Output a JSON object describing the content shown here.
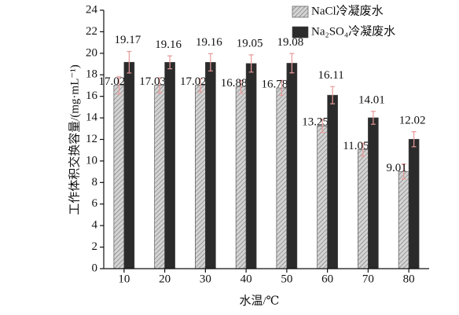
{
  "chart_data": {
    "type": "bar",
    "x_label": "水温/℃",
    "y_label": "工作体积交换容量/(mg·mL⁻¹)",
    "categories": [
      "10",
      "20",
      "30",
      "40",
      "50",
      "60",
      "70",
      "80"
    ],
    "series": [
      {
        "name": "NaCl冷凝废水",
        "color": "#d4d4d4",
        "hatch": true,
        "values": [
          17.02,
          17.03,
          17.02,
          16.88,
          16.78,
          13.25,
          11.05,
          9.01
        ],
        "errors": [
          0.8,
          0.7,
          0.6,
          0.6,
          0.7,
          0.6,
          0.6,
          0.7
        ]
      },
      {
        "name": "Na₂SO₄冷凝废水",
        "color": "#2b2b2b",
        "hatch": false,
        "values": [
          19.17,
          19.16,
          19.16,
          19.05,
          19.08,
          16.11,
          14.01,
          12.02
        ],
        "errors": [
          1.0,
          0.6,
          0.8,
          0.8,
          0.9,
          0.8,
          0.6,
          0.7
        ]
      }
    ],
    "error_color": "#e89a9a",
    "ylim": [
      0,
      24
    ],
    "yticks": [
      0,
      2,
      4,
      6,
      8,
      10,
      12,
      14,
      16,
      18,
      20,
      22,
      24
    ],
    "legend": "upper right"
  }
}
